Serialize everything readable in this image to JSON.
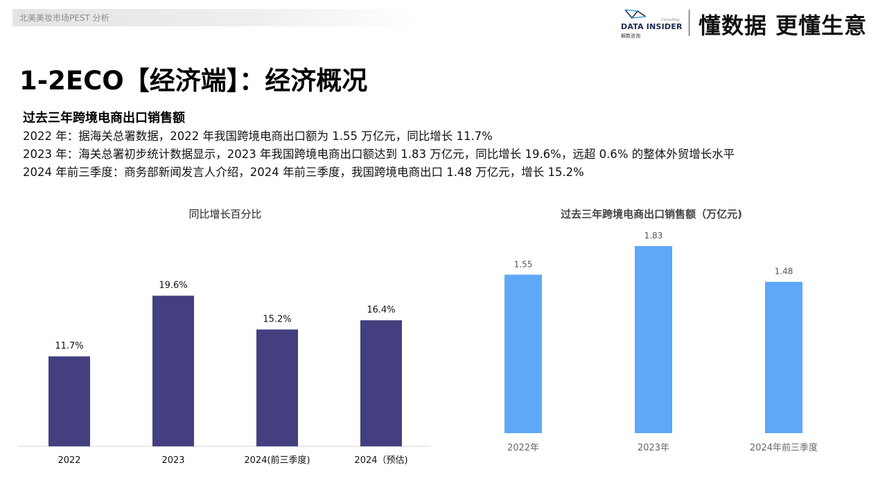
{
  "header": {
    "breadcrumb": "北美美妆市场PEST 分析",
    "logo_text": "DATA INSIDER",
    "logo_small": "Consulting",
    "logo_cn": "解数咨询",
    "slogan": "懂数据 更懂生意"
  },
  "page_title": "1-2ECO【经济端】：经济概况",
  "section": {
    "heading": "过去三年跨境电商出口销售额",
    "paragraphs": [
      "2022 年：据海关总署数据，2022 年我国跨境电商出口额为 1.55 万亿元，同比增长 11.7%",
      "2023 年：海关总署初步统计数据显示，2023 年我国跨境电商出口额达到 1.83 万亿元，同比增长 19.6%，远超 0.6% 的整体外贸增长水平",
      "2024 年前三季度：商务部新闻发言人介绍，2024 年前三季度，我国跨境电商出口 1.48 万亿元，增长 15.2%"
    ]
  },
  "chart_data": [
    {
      "type": "bar",
      "title": "同比增长百分比",
      "categories": [
        "2022",
        "2023",
        "2024(前三季度)",
        "2024（预估)"
      ],
      "values": [
        11.7,
        19.6,
        15.2,
        16.4
      ],
      "value_labels": [
        "11.7%",
        "19.6%",
        "15.2%",
        "16.4%"
      ],
      "ylim": [
        0,
        22
      ],
      "color": "#443f7f",
      "grid": false
    },
    {
      "type": "bar",
      "title": "过去三年跨境电商出口销售额（万亿元)",
      "categories": [
        "2022年",
        "2023年",
        "2024年前三季度"
      ],
      "values": [
        1.55,
        1.83,
        1.48
      ],
      "value_labels": [
        "1.55",
        "1.83",
        "1.48"
      ],
      "ylim": [
        0,
        2.0
      ],
      "color": "#5ea8f7",
      "grid": false
    }
  ]
}
